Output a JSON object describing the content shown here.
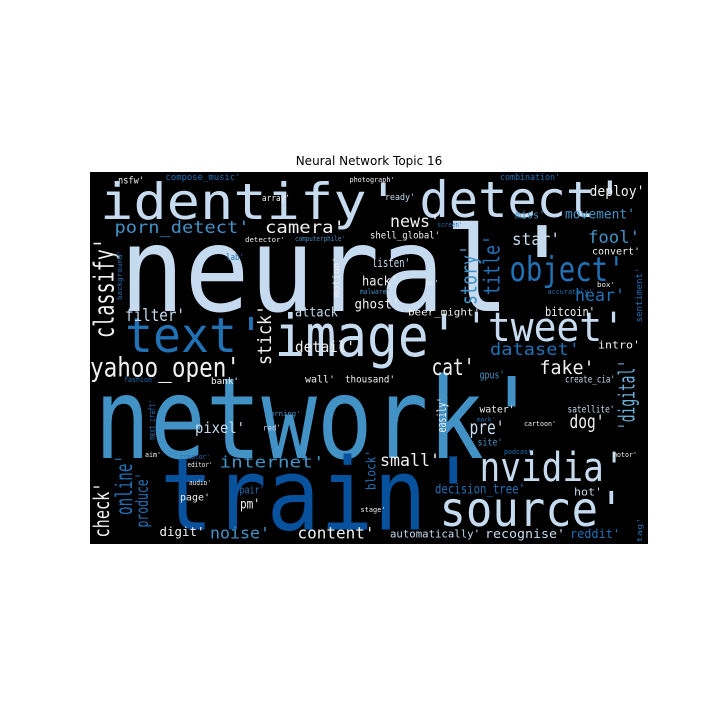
{
  "chart_data": {
    "type": "wordcloud",
    "title": "Neural Network Topic 16",
    "words": [
      "identify'",
      "detect'",
      "neural'",
      "network'",
      "train'",
      "image'",
      "text'",
      "'tweet'",
      "object'",
      "source'",
      "nvidia'",
      "classify'",
      "yahoo_open'",
      "filter'",
      "porn_detect'",
      "camera'",
      "news'",
      "deploy'",
      "movement'",
      "miss'",
      "star'",
      "fool'",
      "convert'",
      "story'",
      "title'",
      "hear'",
      "bitcoin'",
      "dataset'",
      "intro'",
      "fake'",
      "cat'",
      "detail'",
      "stick'",
      "listen'",
      "hack'",
      "ghost'",
      "attack'",
      "motion'",
      "beer_might'",
      "malware'",
      "oc'",
      "shell_global'",
      "screen'",
      "array'",
      "nsfw'",
      "compose_music'",
      "photograph'",
      "ready'",
      "combination'",
      "detector'",
      "computerphile'",
      "lab'",
      "background'",
      "box'",
      "accurately'",
      "sentiment'",
      "wall'",
      "thousand'",
      "bank'",
      "fashion'",
      "gpus'",
      "create_cia'",
      "'digital'",
      "satellite'",
      "water'",
      "morning'",
      "next_craft'",
      "pixel'",
      "red'",
      "easily'",
      "pre'",
      "dog'",
      "site'",
      "podcast'",
      "mark'",
      "cartoon'",
      "motor'",
      "aim'",
      "creator'",
      "editor'",
      "internet'",
      "block'",
      "small'",
      "online'",
      "check'",
      "produce'",
      "audio'",
      "pair'",
      "page'",
      "pm'",
      "decision_tree'",
      "hot'",
      "stage'",
      "tag'",
      "digit'",
      "noise'",
      "content'",
      "automatically'",
      "recognise'",
      "reddit'"
    ]
  }
}
